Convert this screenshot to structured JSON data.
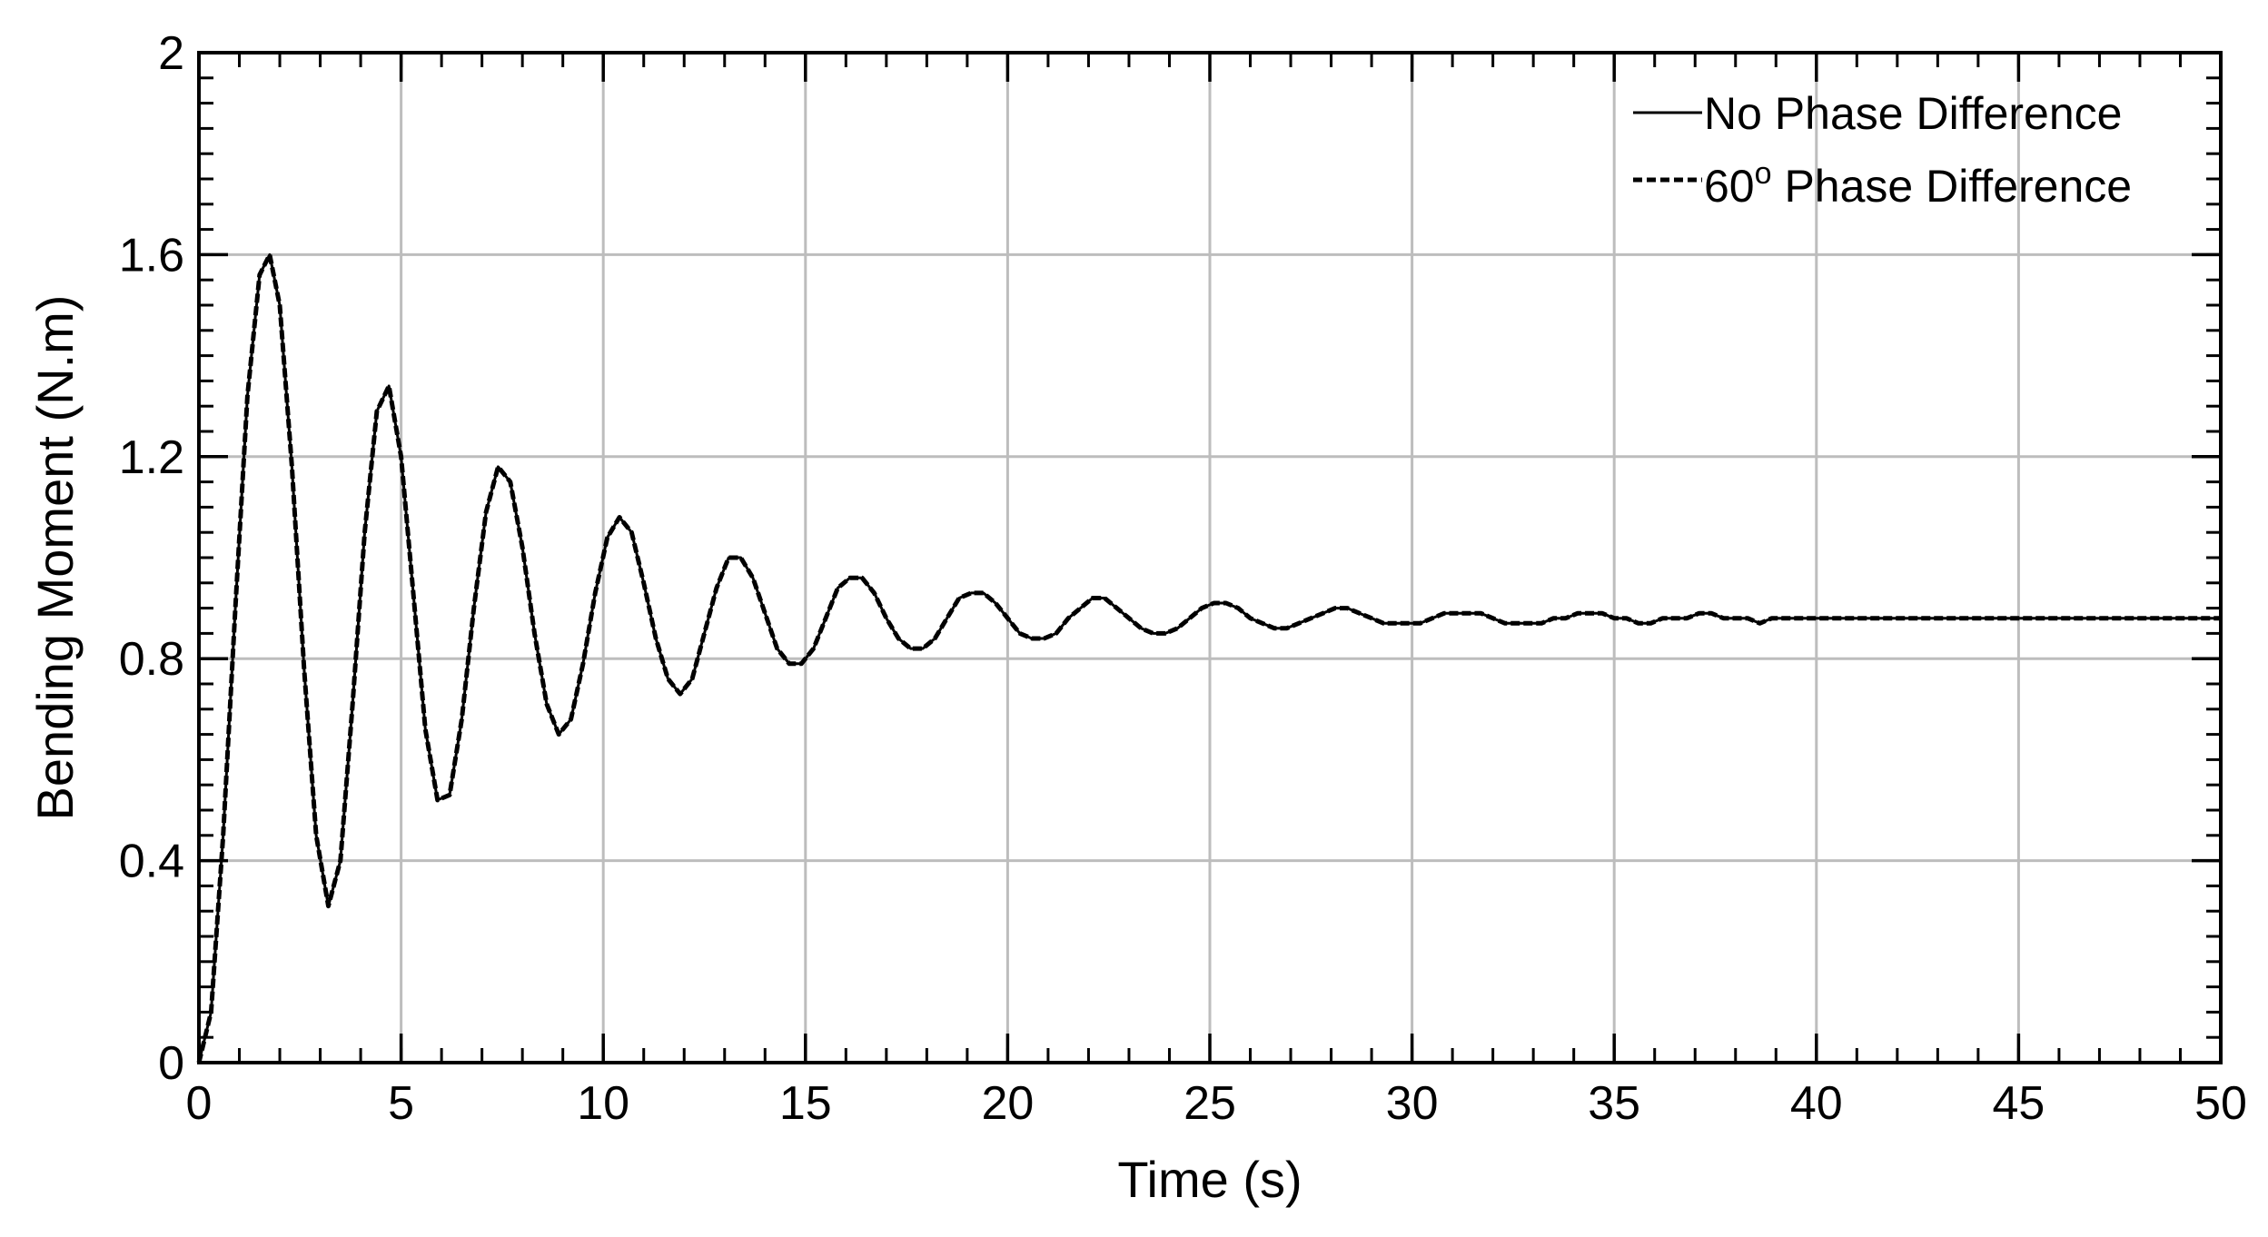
{
  "chart_data": {
    "type": "line",
    "title": "",
    "xlabel": "Time (s)",
    "ylabel": "Bending Moment (N.m)",
    "xlim": [
      0,
      50
    ],
    "ylim": [
      0,
      2
    ],
    "x_ticks": [
      0,
      5,
      10,
      15,
      20,
      25,
      30,
      35,
      40,
      45,
      50
    ],
    "x_tick_labels": [
      "0",
      "5",
      "10",
      "15",
      "20",
      "25",
      "30",
      "35",
      "40",
      "45",
      "50"
    ],
    "y_ticks": [
      0,
      0.4,
      0.8,
      1.2,
      1.6,
      2
    ],
    "y_tick_labels": [
      "0",
      "0.4",
      "0.8",
      "1.2",
      "1.6",
      "2"
    ],
    "grid": true,
    "legend_position": "top-right",
    "series": [
      {
        "name": "No Phase Difference",
        "label_text": "No Phase Difference",
        "style": "solid",
        "color": "#000000",
        "x": [
          0,
          0.3,
          0.6,
          0.9,
          1.2,
          1.5,
          1.75,
          2.0,
          2.3,
          2.6,
          2.9,
          3.2,
          3.5,
          3.8,
          4.1,
          4.4,
          4.7,
          5.0,
          5.3,
          5.6,
          5.9,
          6.2,
          6.5,
          6.8,
          7.1,
          7.4,
          7.7,
          8.0,
          8.3,
          8.6,
          8.9,
          9.2,
          9.5,
          9.8,
          10.1,
          10.4,
          10.7,
          11.0,
          11.3,
          11.6,
          11.9,
          12.2,
          12.5,
          12.8,
          13.1,
          13.4,
          13.7,
          14.0,
          14.3,
          14.6,
          14.9,
          15.2,
          15.5,
          15.8,
          16.1,
          16.4,
          16.7,
          17.0,
          17.3,
          17.6,
          17.9,
          18.2,
          18.5,
          18.8,
          19.1,
          19.4,
          19.7,
          20.0,
          20.3,
          20.6,
          20.9,
          21.2,
          21.5,
          21.8,
          22.1,
          22.4,
          22.7,
          23.0,
          23.3,
          23.6,
          23.9,
          24.2,
          24.5,
          24.8,
          25.1,
          25.4,
          25.7,
          26.0,
          26.3,
          26.6,
          26.9,
          27.2,
          27.5,
          27.8,
          28.1,
          28.4,
          28.7,
          29.0,
          29.3,
          29.6,
          29.9,
          30.2,
          30.5,
          30.8,
          31.1,
          31.4,
          31.7,
          32.0,
          32.3,
          32.6,
          32.9,
          33.2,
          33.5,
          33.8,
          34.1,
          34.4,
          34.7,
          35.0,
          35.3,
          35.6,
          35.9,
          36.2,
          36.5,
          36.8,
          37.1,
          37.4,
          37.7,
          38.0,
          38.3,
          38.6,
          38.9,
          39.2,
          39.5,
          39.8,
          40.1,
          40.4,
          40.7,
          41.0,
          41.3,
          41.6,
          41.9,
          42.2,
          42.5,
          42.8,
          43.1,
          43.4,
          43.7,
          44.0,
          44.3,
          44.6,
          44.9,
          45.2,
          45.5,
          45.8,
          46.1,
          46.4,
          46.7,
          47.0,
          47.3,
          47.6,
          47.9,
          48.2,
          48.5,
          48.8,
          49.1,
          49.4,
          49.7,
          50.0
        ],
        "y": [
          0,
          0.1,
          0.45,
          0.9,
          1.32,
          1.56,
          1.6,
          1.5,
          1.18,
          0.78,
          0.45,
          0.31,
          0.4,
          0.71,
          1.05,
          1.29,
          1.34,
          1.2,
          0.93,
          0.66,
          0.52,
          0.53,
          0.68,
          0.9,
          1.09,
          1.18,
          1.15,
          1.02,
          0.85,
          0.71,
          0.65,
          0.68,
          0.79,
          0.93,
          1.04,
          1.08,
          1.05,
          0.95,
          0.84,
          0.76,
          0.73,
          0.76,
          0.85,
          0.94,
          1.0,
          1.0,
          0.96,
          0.89,
          0.82,
          0.79,
          0.79,
          0.82,
          0.88,
          0.94,
          0.96,
          0.96,
          0.93,
          0.88,
          0.84,
          0.82,
          0.82,
          0.84,
          0.88,
          0.92,
          0.93,
          0.93,
          0.91,
          0.88,
          0.85,
          0.84,
          0.84,
          0.85,
          0.88,
          0.9,
          0.92,
          0.92,
          0.9,
          0.88,
          0.86,
          0.85,
          0.85,
          0.86,
          0.88,
          0.9,
          0.91,
          0.91,
          0.9,
          0.88,
          0.87,
          0.86,
          0.86,
          0.87,
          0.88,
          0.89,
          0.9,
          0.9,
          0.89,
          0.88,
          0.87,
          0.87,
          0.87,
          0.87,
          0.88,
          0.89,
          0.89,
          0.89,
          0.89,
          0.88,
          0.87,
          0.87,
          0.87,
          0.87,
          0.88,
          0.88,
          0.89,
          0.89,
          0.89,
          0.88,
          0.88,
          0.87,
          0.87,
          0.88,
          0.88,
          0.88,
          0.89,
          0.89,
          0.88,
          0.88,
          0.88,
          0.87,
          0.88,
          0.88,
          0.88,
          0.88,
          0.88,
          0.88,
          0.88,
          0.88,
          0.88,
          0.88,
          0.88,
          0.88,
          0.88,
          0.88,
          0.88,
          0.88,
          0.88,
          0.88,
          0.88,
          0.88,
          0.88,
          0.88,
          0.88,
          0.88,
          0.88,
          0.88,
          0.88,
          0.88,
          0.88,
          0.88,
          0.88,
          0.88,
          0.88,
          0.88,
          0.88,
          0.88,
          0.88,
          0.88
        ]
      },
      {
        "name": "60° Phase Difference",
        "label_text": "60",
        "label_superscript": "o",
        "label_suffix": " Phase Difference",
        "style": "dashed",
        "color": "#000000",
        "same_as_series_index": 0
      }
    ]
  }
}
